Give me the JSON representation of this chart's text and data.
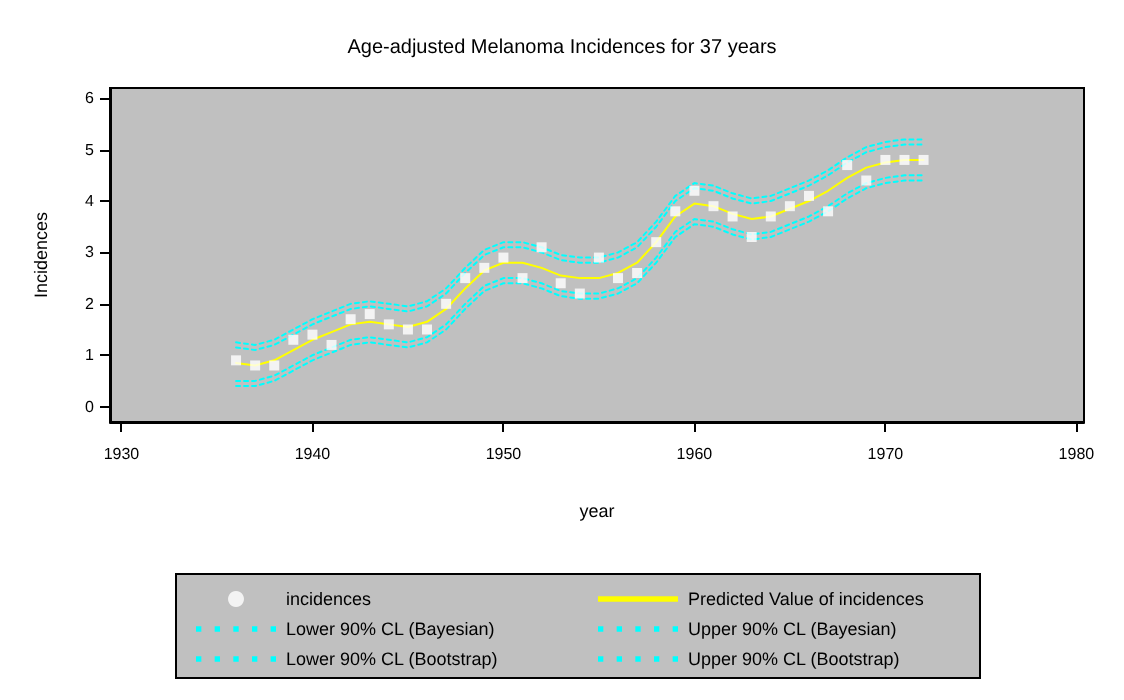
{
  "chart_data": {
    "type": "line",
    "title": "Age-adjusted Melanoma Incidences for 37 years",
    "xlabel": "year",
    "ylabel": "Incidences",
    "x": [
      1936,
      1937,
      1938,
      1939,
      1940,
      1941,
      1942,
      1943,
      1944,
      1945,
      1946,
      1947,
      1948,
      1949,
      1950,
      1951,
      1952,
      1953,
      1954,
      1955,
      1956,
      1957,
      1958,
      1959,
      1960,
      1961,
      1962,
      1963,
      1964,
      1965,
      1966,
      1967,
      1968,
      1969,
      1970,
      1971,
      1972
    ],
    "xlim": [
      1929.4,
      1980.4
    ],
    "xticks": [
      1930,
      1940,
      1950,
      1960,
      1970,
      1980
    ],
    "ylim": [
      -0.3,
      6.2
    ],
    "yticks": [
      0,
      1,
      2,
      3,
      4,
      5,
      6
    ],
    "legend": "bottom",
    "series": [
      {
        "name": "incidences",
        "type": "scatter",
        "marker": "square",
        "color": "#ffffff",
        "values": [
          0.9,
          0.8,
          0.8,
          1.3,
          1.4,
          1.2,
          1.7,
          1.8,
          1.6,
          1.5,
          1.5,
          2.0,
          2.5,
          2.7,
          2.9,
          2.5,
          3.1,
          2.4,
          2.2,
          2.9,
          2.5,
          2.6,
          3.2,
          3.8,
          4.2,
          3.9,
          3.7,
          3.3,
          3.7,
          3.9,
          4.1,
          3.8,
          4.7,
          4.4,
          4.8,
          4.8,
          4.8
        ]
      },
      {
        "name": "Predicted Value of incidences",
        "marker": "none",
        "line_style": "solid",
        "color": "#ffff00",
        "values": [
          0.85,
          0.8,
          0.9,
          1.1,
          1.3,
          1.45,
          1.6,
          1.65,
          1.6,
          1.55,
          1.65,
          1.9,
          2.3,
          2.65,
          2.8,
          2.8,
          2.7,
          2.55,
          2.5,
          2.5,
          2.6,
          2.8,
          3.2,
          3.7,
          3.95,
          3.9,
          3.75,
          3.65,
          3.7,
          3.85,
          4.0,
          4.2,
          4.45,
          4.65,
          4.75,
          4.8,
          4.8
        ]
      },
      {
        "name": "Lower 90% CL (Bayesian)",
        "marker": "none",
        "line_style": "dotted",
        "color": "#00ffff",
        "values": [
          0.5,
          0.5,
          0.6,
          0.8,
          1.0,
          1.15,
          1.3,
          1.35,
          1.3,
          1.25,
          1.35,
          1.6,
          2.0,
          2.35,
          2.5,
          2.5,
          2.4,
          2.25,
          2.2,
          2.2,
          2.3,
          2.5,
          2.9,
          3.4,
          3.65,
          3.6,
          3.45,
          3.35,
          3.4,
          3.55,
          3.7,
          3.9,
          4.15,
          4.35,
          4.45,
          4.5,
          4.5
        ]
      },
      {
        "name": "Upper 90% CL (Bayesian)",
        "marker": "none",
        "line_style": "dotted",
        "color": "#00ffff",
        "values": [
          1.15,
          1.1,
          1.2,
          1.4,
          1.6,
          1.75,
          1.9,
          1.95,
          1.9,
          1.85,
          1.95,
          2.2,
          2.6,
          2.95,
          3.1,
          3.1,
          3.0,
          2.85,
          2.8,
          2.8,
          2.9,
          3.1,
          3.5,
          4.0,
          4.25,
          4.2,
          4.05,
          3.95,
          4.0,
          4.15,
          4.3,
          4.5,
          4.75,
          4.95,
          5.05,
          5.1,
          5.1
        ]
      },
      {
        "name": "Lower 90% CL (Bootstrap)",
        "marker": "none",
        "line_style": "dotted",
        "color": "#00ffff",
        "values": [
          0.4,
          0.4,
          0.5,
          0.7,
          0.9,
          1.05,
          1.2,
          1.25,
          1.2,
          1.15,
          1.25,
          1.5,
          1.9,
          2.25,
          2.4,
          2.4,
          2.3,
          2.15,
          2.1,
          2.1,
          2.2,
          2.4,
          2.8,
          3.3,
          3.55,
          3.5,
          3.35,
          3.25,
          3.3,
          3.45,
          3.6,
          3.8,
          4.05,
          4.25,
          4.35,
          4.4,
          4.4
        ]
      },
      {
        "name": "Upper 90% CL (Bootstrap)",
        "marker": "none",
        "line_style": "dotted",
        "color": "#00ffff",
        "values": [
          1.25,
          1.2,
          1.3,
          1.5,
          1.7,
          1.85,
          2.0,
          2.05,
          2.0,
          1.95,
          2.05,
          2.3,
          2.7,
          3.05,
          3.2,
          3.2,
          3.1,
          2.95,
          2.9,
          2.9,
          3.0,
          3.2,
          3.6,
          4.1,
          4.35,
          4.3,
          4.15,
          4.05,
          4.1,
          4.25,
          4.4,
          4.6,
          4.85,
          5.05,
          5.15,
          5.2,
          5.2
        ]
      }
    ]
  }
}
